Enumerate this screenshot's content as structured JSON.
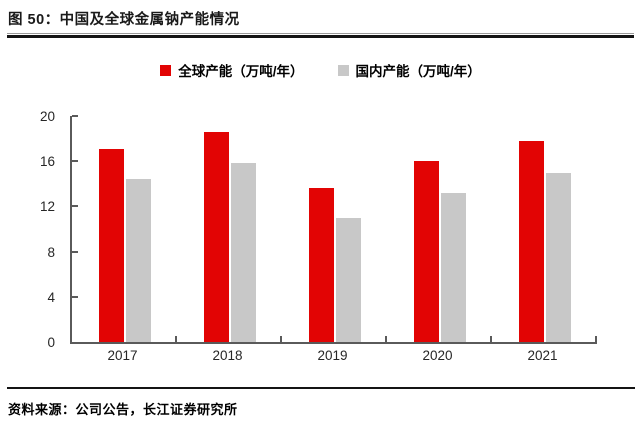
{
  "figure": {
    "title": "图 50：中国及全球金属钠产能情况",
    "source": "资料来源：公司公告，长江证券研究所"
  },
  "chart_data": {
    "type": "bar",
    "title": "中国及全球金属钠产能情况",
    "categories": [
      "2017",
      "2018",
      "2019",
      "2020",
      "2021"
    ],
    "series": [
      {
        "key": "global",
        "name": "全球产能（万吨/年）",
        "color": "#e20404",
        "values": [
          17.1,
          18.6,
          13.6,
          16.0,
          17.8
        ]
      },
      {
        "key": "domestic",
        "name": "国内产能（万吨/年）",
        "color": "#c8c8c8",
        "values": [
          14.4,
          15.8,
          11.0,
          13.2,
          15.0
        ]
      }
    ],
    "xlabel": "",
    "ylabel": "",
    "ylim": [
      0,
      20
    ],
    "yticks": [
      0,
      4,
      8,
      12,
      16,
      20
    ],
    "legend_position": "top",
    "grid": false
  }
}
